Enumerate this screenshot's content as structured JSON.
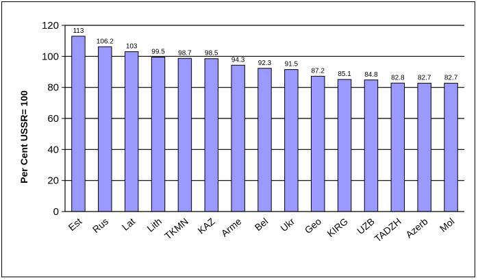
{
  "chart_data": {
    "type": "bar",
    "ylabel": "Per Cent USSR= 100",
    "xlabel": "",
    "title": "",
    "ylim": [
      0,
      120
    ],
    "ytick_step": 20,
    "grid": true,
    "bar_color": "#9999ff",
    "bar_edge_color": "#000000",
    "categories": [
      "Est",
      "Rus",
      "Lat",
      "Lith",
      "TKMN",
      "KAZ",
      "Arme",
      "Bel",
      "Ukr",
      "Geo",
      "KIRG",
      "UZB",
      "TADZH",
      "Azerb",
      "Mol"
    ],
    "values": [
      113,
      106.2,
      103,
      99.5,
      98.7,
      98.5,
      94.3,
      92.3,
      91.5,
      87.2,
      85.1,
      84.8,
      82.8,
      82.7,
      82.7
    ],
    "data_labels": [
      "113",
      "106.2",
      "103",
      "99.5",
      "98.7",
      "98.5",
      "94.3",
      "92.3",
      "91.5",
      "87.2",
      "85.1",
      "84.8",
      "82.8",
      "82.7",
      "82.7"
    ]
  }
}
